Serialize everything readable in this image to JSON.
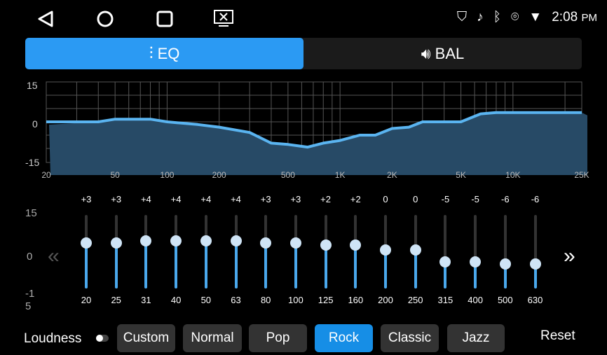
{
  "status": {
    "time": "2:08",
    "ampm": "PM"
  },
  "tabs": [
    {
      "label": "EQ",
      "active": true
    },
    {
      "label": "BAL",
      "active": false
    }
  ],
  "graph": {
    "y_labels": [
      "15",
      "0",
      "-15"
    ],
    "x_labels": [
      "20",
      "50",
      "100",
      "200",
      "500",
      "1K",
      "2K",
      "5K",
      "10K",
      "25K"
    ],
    "curve": [
      [
        20,
        0
      ],
      [
        40,
        0
      ],
      [
        50,
        1
      ],
      [
        80,
        1
      ],
      [
        100,
        0
      ],
      [
        150,
        -1
      ],
      [
        200,
        -2
      ],
      [
        300,
        -4
      ],
      [
        400,
        -8
      ],
      [
        500,
        -8.5
      ],
      [
        650,
        -9.5
      ],
      [
        800,
        -8
      ],
      [
        1000,
        -7
      ],
      [
        1300,
        -5
      ],
      [
        1600,
        -5
      ],
      [
        2000,
        -2.5
      ],
      [
        2500,
        -2
      ],
      [
        3000,
        0
      ],
      [
        5000,
        0
      ],
      [
        6500,
        3
      ],
      [
        8000,
        3.5
      ],
      [
        25000,
        3.5
      ]
    ],
    "color": "#5ab4f0"
  },
  "eq": {
    "scale": [
      "15",
      "0",
      "-1\n5"
    ],
    "bands": [
      {
        "freq": "20",
        "label": "+3",
        "value": 3
      },
      {
        "freq": "25",
        "label": "+3",
        "value": 3
      },
      {
        "freq": "31",
        "label": "+4",
        "value": 4
      },
      {
        "freq": "40",
        "label": "+4",
        "value": 4
      },
      {
        "freq": "50",
        "label": "+4",
        "value": 4
      },
      {
        "freq": "63",
        "label": "+4",
        "value": 4
      },
      {
        "freq": "80",
        "label": "+3",
        "value": 3
      },
      {
        "freq": "100",
        "label": "+3",
        "value": 3
      },
      {
        "freq": "125",
        "label": "+2",
        "value": 2
      },
      {
        "freq": "160",
        "label": "+2",
        "value": 2
      },
      {
        "freq": "200",
        "label": "0",
        "value": 0
      },
      {
        "freq": "250",
        "label": "0",
        "value": 0
      },
      {
        "freq": "315",
        "label": "-5",
        "value": -5
      },
      {
        "freq": "400",
        "label": "-5",
        "value": -5
      },
      {
        "freq": "500",
        "label": "-6",
        "value": -6
      },
      {
        "freq": "630",
        "label": "-6",
        "value": -6
      }
    ]
  },
  "bottom": {
    "loudness": "Loudness",
    "loudness_on": false,
    "presets": [
      "Custom",
      "Normal",
      "Pop",
      "Rock",
      "Classic",
      "Jazz"
    ],
    "active_preset": "Rock",
    "reset": "Reset"
  }
}
